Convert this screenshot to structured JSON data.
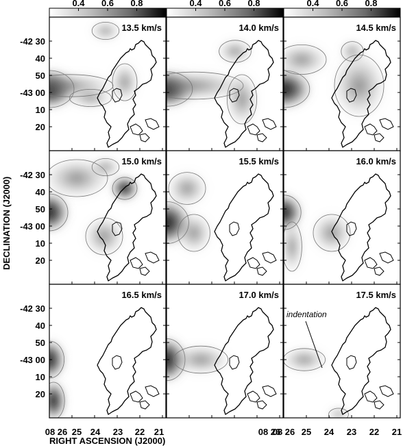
{
  "chart_data": {
    "type": "heatmap",
    "layout": {
      "rows": 3,
      "cols": 3
    },
    "colorbar": {
      "tick_labels": [
        "0.4",
        "0.6",
        "0.8"
      ],
      "range": [
        0.2,
        1.0
      ],
      "colormap": "white-to-black"
    },
    "xlabel": "RIGHT ASCENSION (J2000)",
    "ylabel": "DECLINATION (J2000)",
    "x_ticks": [
      "08 26",
      "25",
      "24",
      "23",
      "22",
      "21"
    ],
    "x_ticks_middle": [
      "08 26"
    ],
    "y_ticks": [
      "-42 30",
      "40",
      "50",
      "-43 00",
      "10",
      "20"
    ],
    "panels": [
      {
        "velocity": "13.5 km/s"
      },
      {
        "velocity": "14.0 km/s"
      },
      {
        "velocity": "14.5 km/s"
      },
      {
        "velocity": "15.0 km/s"
      },
      {
        "velocity": "15.5 km/s"
      },
      {
        "velocity": "16.0 km/s"
      },
      {
        "velocity": "16.5 km/s"
      },
      {
        "velocity": "17.0 km/s"
      },
      {
        "velocity": "17.5 km/s"
      }
    ],
    "annotations": [
      {
        "panel": 8,
        "text": "indentation"
      }
    ]
  }
}
